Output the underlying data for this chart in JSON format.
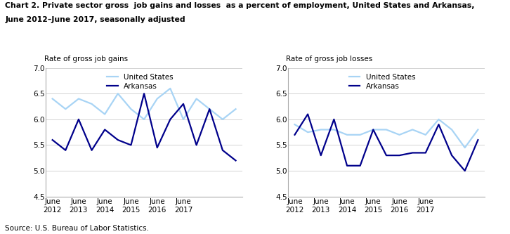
{
  "title_line1": "Chart 2. Private sector gross  job gains and losses  as a percent of employment, United States and Arkansas,",
  "title_line2": "June 2012–June 2017, seasonally adjusted",
  "left_ylabel": "Rate of gross job gains",
  "right_ylabel": "Rate of gross job losses",
  "source": "Source: U.S. Bureau of Labor Statistics.",
  "x_labels": [
    "June\n2012",
    "June\n2013",
    "June\n2014",
    "June\n2015",
    "June\n2016",
    "June\n2017"
  ],
  "x_tick_positions": [
    0,
    2,
    4,
    6,
    8,
    10
  ],
  "ylim": [
    4.5,
    7.0
  ],
  "yticks": [
    4.5,
    5.0,
    5.5,
    6.0,
    6.5,
    7.0
  ],
  "gains_us": [
    6.4,
    6.2,
    6.4,
    6.3,
    6.1,
    6.5,
    6.2,
    6.0,
    6.4,
    6.6,
    6.0,
    6.4,
    6.2,
    6.0,
    6.2
  ],
  "gains_ar": [
    5.6,
    5.4,
    6.0,
    5.4,
    5.8,
    5.6,
    5.5,
    6.5,
    5.45,
    6.0,
    6.3,
    5.5,
    6.2,
    5.4,
    5.2
  ],
  "losses_us": [
    5.9,
    5.75,
    5.8,
    5.8,
    5.7,
    5.7,
    5.8,
    5.8,
    5.7,
    5.8,
    5.7,
    6.0,
    5.8,
    5.45,
    5.8
  ],
  "losses_ar": [
    5.7,
    6.1,
    5.3,
    6.0,
    5.1,
    5.1,
    5.8,
    5.3,
    5.3,
    5.35,
    5.35,
    5.9,
    5.3,
    5.0,
    5.6
  ],
  "color_us": "#A8D4F5",
  "color_ar": "#00008B",
  "legend_us": "United States",
  "legend_ar": "Arkansas",
  "n_points": 15
}
